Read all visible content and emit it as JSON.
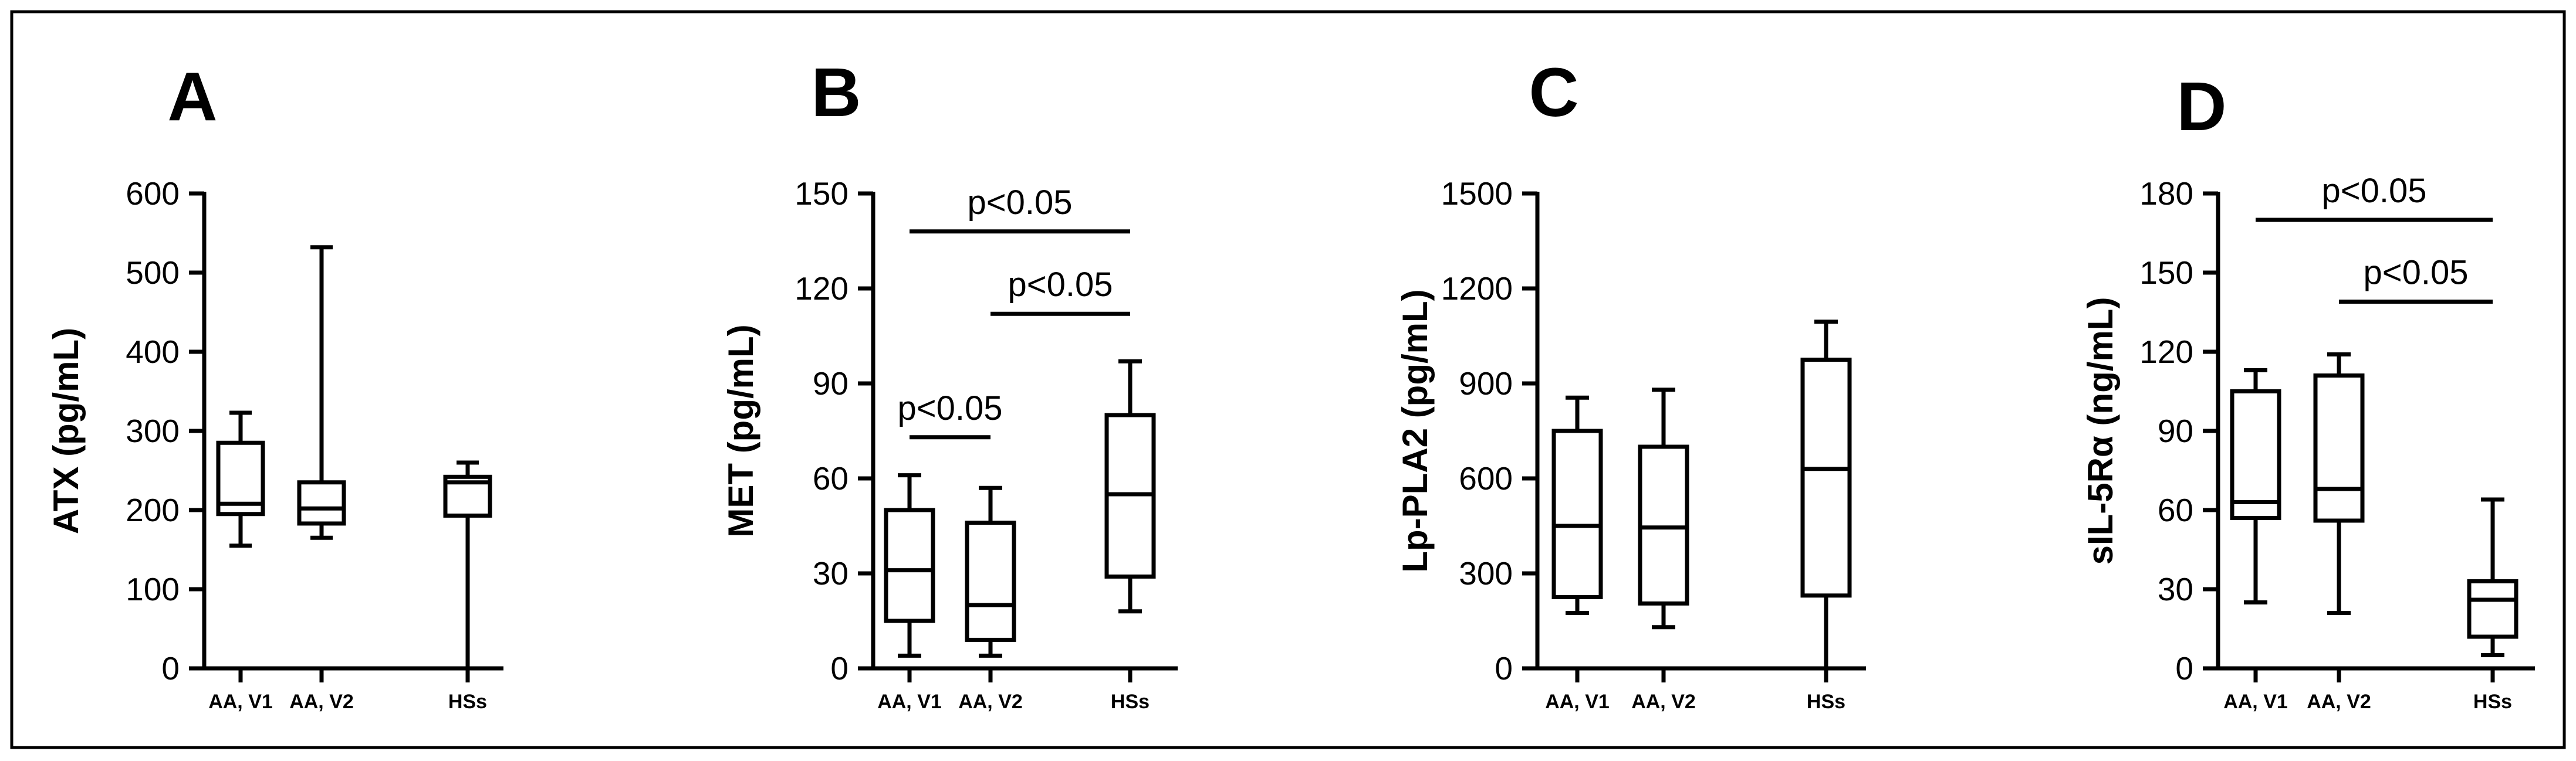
{
  "chart_data": [
    {
      "type": "box",
      "panel": "A",
      "ylabel": "ATX (pg/mL)",
      "ylim": [
        0,
        600
      ],
      "yticks": [
        "0",
        "100",
        "200",
        "300",
        "400",
        "500",
        "600"
      ],
      "categories": [
        "AA, V1",
        "AA, V2",
        "HSs"
      ],
      "boxes": [
        {
          "min": 155,
          "q1": 195,
          "median": 208,
          "q3": 285,
          "max": 323
        },
        {
          "min": 165,
          "q1": 183,
          "median": 202,
          "q3": 235,
          "max": 532
        },
        {
          "min": 0,
          "q1": 193,
          "median": 235,
          "q3": 242,
          "max": 260
        }
      ],
      "annotations": []
    },
    {
      "type": "box",
      "panel": "B",
      "ylabel": "MET (pg/mL)",
      "ylim": [
        0,
        150
      ],
      "yticks": [
        "0",
        "30",
        "60",
        "90",
        "120",
        "150"
      ],
      "categories": [
        "AA, V1",
        "AA, V2",
        "HSs"
      ],
      "boxes": [
        {
          "min": 4,
          "q1": 15,
          "median": 31,
          "q3": 50,
          "max": 61
        },
        {
          "min": 4,
          "q1": 9,
          "median": 20,
          "q3": 46,
          "max": 57
        },
        {
          "min": 18,
          "q1": 29,
          "median": 55,
          "q3": 80,
          "max": 97
        }
      ],
      "annotations": [
        {
          "text": "p<0.05",
          "from": 0,
          "to": 1,
          "y": 73
        },
        {
          "text": "p<0.05",
          "from": 1,
          "to": 2,
          "y": 112
        },
        {
          "text": "p<0.05",
          "from": 0,
          "to": 2,
          "y": 138
        }
      ]
    },
    {
      "type": "box",
      "panel": "C",
      "ylabel": "Lp-PLA2 (pg/mL)",
      "ylim": [
        0,
        1500
      ],
      "yticks": [
        "0",
        "300",
        "600",
        "900",
        "1200",
        "1500"
      ],
      "categories": [
        "AA, V1",
        "AA, V2",
        "HSs"
      ],
      "boxes": [
        {
          "min": 175,
          "q1": 225,
          "median": 450,
          "q3": 750,
          "max": 855
        },
        {
          "min": 130,
          "q1": 205,
          "median": 445,
          "q3": 700,
          "max": 880
        },
        {
          "min": 0,
          "q1": 230,
          "median": 630,
          "q3": 975,
          "max": 1095
        }
      ],
      "annotations": []
    },
    {
      "type": "box",
      "panel": "D",
      "ylabel": "sIL-5Rα (ng/mL)",
      "ylim": [
        0,
        180
      ],
      "yticks": [
        "0",
        "30",
        "60",
        "90",
        "120",
        "150",
        "180"
      ],
      "categories": [
        "AA, V1",
        "AA, V2",
        "HSs"
      ],
      "boxes": [
        {
          "min": 25,
          "q1": 57,
          "median": 63,
          "q3": 105,
          "max": 113
        },
        {
          "min": 21,
          "q1": 56,
          "median": 68,
          "q3": 111,
          "max": 119
        },
        {
          "min": 5,
          "q1": 12,
          "median": 26,
          "q3": 33,
          "max": 64
        }
      ],
      "annotations": [
        {
          "text": "p<0.05",
          "from": 0,
          "to": 2,
          "y": 170
        },
        {
          "text": "p<0.05",
          "from": 1,
          "to": 2,
          "y": 139
        }
      ]
    }
  ]
}
